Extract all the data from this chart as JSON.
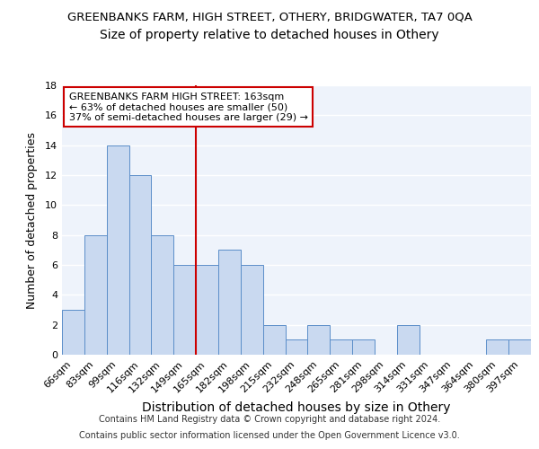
{
  "title1": "GREENBANKS FARM, HIGH STREET, OTHERY, BRIDGWATER, TA7 0QA",
  "title2": "Size of property relative to detached houses in Othery",
  "xlabel": "Distribution of detached houses by size in Othery",
  "ylabel": "Number of detached properties",
  "categories": [
    "66sqm",
    "83sqm",
    "99sqm",
    "116sqm",
    "132sqm",
    "149sqm",
    "165sqm",
    "182sqm",
    "198sqm",
    "215sqm",
    "232sqm",
    "248sqm",
    "265sqm",
    "281sqm",
    "298sqm",
    "314sqm",
    "331sqm",
    "347sqm",
    "364sqm",
    "380sqm",
    "397sqm"
  ],
  "values": [
    3,
    8,
    14,
    12,
    8,
    6,
    6,
    7,
    6,
    2,
    1,
    2,
    1,
    1,
    0,
    2,
    0,
    0,
    0,
    1,
    1
  ],
  "bar_color": "#c9d9f0",
  "bar_edge_color": "#5b8ec9",
  "vline_color": "#cc0000",
  "ylim": [
    0,
    18
  ],
  "yticks": [
    0,
    2,
    4,
    6,
    8,
    10,
    12,
    14,
    16,
    18
  ],
  "annotation_title": "GREENBANKS FARM HIGH STREET: 163sqm",
  "annotation_line1": "← 63% of detached houses are smaller (50)",
  "annotation_line2": "37% of semi-detached houses are larger (29) →",
  "footnote1": "Contains HM Land Registry data © Crown copyright and database right 2024.",
  "footnote2": "Contains public sector information licensed under the Open Government Licence v3.0.",
  "bg_color": "#eef3fb",
  "grid_color": "#ffffff",
  "title1_fontsize": 9.5,
  "title2_fontsize": 10,
  "xlabel_fontsize": 10,
  "ylabel_fontsize": 9,
  "tick_fontsize": 8,
  "annot_fontsize": 8,
  "footnote_fontsize": 7
}
